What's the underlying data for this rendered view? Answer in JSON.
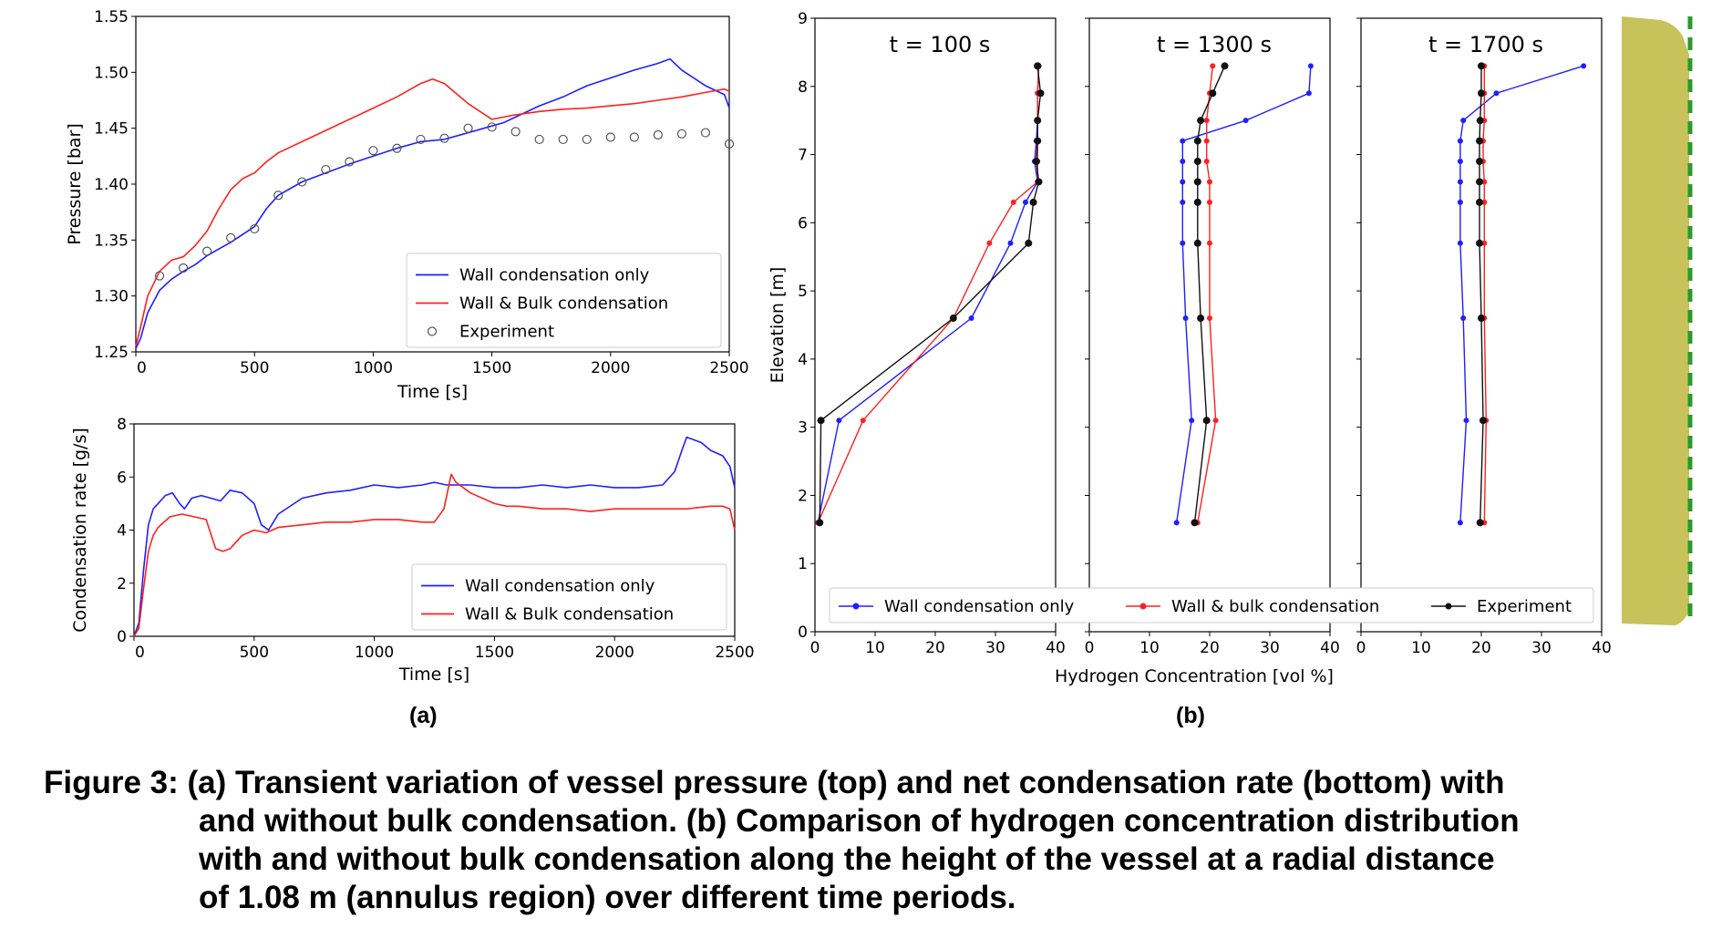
{
  "panels": {
    "a": "(a)",
    "b": "(b)"
  },
  "caption": {
    "line1": "Figure 3: (a) Transient variation of vessel pressure (top) and net condensation rate (bottom) with",
    "line2": "and without bulk condensation. (b) Comparison of hydrogen concentration distribution",
    "line3": "with and without bulk condensation along the height of the vessel at a radial distance",
    "line4": "of 1.08 m (annulus region) over different time periods."
  },
  "colors": {
    "wall": "#1f1fff",
    "bulk": "#ff2020",
    "experiment": "#111111",
    "vessel": "#c8c25a",
    "centerline": "#2a9a2a"
  },
  "chart_data": [
    {
      "type": "line",
      "id": "pressure",
      "xlabel": "Time [s]",
      "ylabel": "Pressure [bar]",
      "xlim": [
        0,
        2500
      ],
      "ylim": [
        1.25,
        1.55
      ],
      "xticks": [
        0,
        500,
        1000,
        1500,
        2000,
        2500
      ],
      "yticks": [
        1.25,
        1.3,
        1.35,
        1.4,
        1.45,
        1.5,
        1.55
      ],
      "legend_position": "lower-right",
      "series": [
        {
          "name": "Wall condensation only",
          "style": "line",
          "color": "#1f1fff",
          "x": [
            0,
            20,
            50,
            100,
            150,
            200,
            250,
            300,
            350,
            400,
            450,
            500,
            550,
            600,
            700,
            800,
            900,
            1000,
            1100,
            1200,
            1300,
            1400,
            1500,
            1550,
            1600,
            1700,
            1800,
            1900,
            2000,
            2100,
            2200,
            2250,
            2300,
            2400,
            2480,
            2500
          ],
          "y": [
            1.253,
            1.262,
            1.285,
            1.305,
            1.315,
            1.322,
            1.328,
            1.336,
            1.342,
            1.348,
            1.355,
            1.362,
            1.378,
            1.39,
            1.402,
            1.41,
            1.418,
            1.425,
            1.432,
            1.438,
            1.44,
            1.446,
            1.452,
            1.455,
            1.46,
            1.47,
            1.478,
            1.488,
            1.495,
            1.502,
            1.508,
            1.512,
            1.502,
            1.488,
            1.48,
            1.468
          ]
        },
        {
          "name": "Wall & Bulk condensation",
          "style": "line",
          "color": "#ff2020",
          "x": [
            0,
            20,
            50,
            100,
            150,
            200,
            250,
            300,
            350,
            400,
            450,
            500,
            550,
            600,
            700,
            800,
            900,
            1000,
            1100,
            1200,
            1250,
            1300,
            1400,
            1500,
            1550,
            1600,
            1700,
            1800,
            1900,
            2000,
            2100,
            2200,
            2300,
            2400,
            2480,
            2500
          ],
          "y": [
            1.255,
            1.272,
            1.3,
            1.322,
            1.332,
            1.335,
            1.345,
            1.358,
            1.378,
            1.395,
            1.405,
            1.41,
            1.42,
            1.428,
            1.438,
            1.448,
            1.458,
            1.468,
            1.478,
            1.49,
            1.494,
            1.49,
            1.472,
            1.458,
            1.46,
            1.462,
            1.465,
            1.467,
            1.468,
            1.47,
            1.472,
            1.475,
            1.478,
            1.482,
            1.485,
            1.483
          ]
        },
        {
          "name": "Experiment",
          "style": "marker",
          "color": "#555555",
          "x": [
            100,
            200,
            300,
            400,
            500,
            600,
            700,
            800,
            900,
            1000,
            1100,
            1200,
            1300,
            1400,
            1500,
            1600,
            1700,
            1800,
            1900,
            2000,
            2100,
            2200,
            2300,
            2400,
            2500
          ],
          "y": [
            1.318,
            1.325,
            1.34,
            1.352,
            1.36,
            1.39,
            1.402,
            1.413,
            1.42,
            1.43,
            1.432,
            1.44,
            1.441,
            1.45,
            1.451,
            1.447,
            1.44,
            1.44,
            1.44,
            1.442,
            1.442,
            1.444,
            1.445,
            1.446,
            1.436
          ]
        }
      ]
    },
    {
      "type": "line",
      "id": "condensation",
      "xlabel": "Time [s]",
      "ylabel": "Condensation rate [g/s]",
      "xlim": [
        0,
        2500
      ],
      "ylim": [
        0,
        8
      ],
      "xticks": [
        0,
        500,
        1000,
        1500,
        2000,
        2500
      ],
      "yticks": [
        0,
        2,
        4,
        6,
        8
      ],
      "legend_position": "lower-right",
      "series": [
        {
          "name": "Wall condensation only",
          "style": "line",
          "color": "#1f1fff",
          "x": [
            0,
            20,
            40,
            60,
            80,
            100,
            130,
            160,
            190,
            210,
            240,
            280,
            320,
            360,
            400,
            450,
            500,
            530,
            560,
            580,
            600,
            700,
            800,
            900,
            1000,
            1100,
            1200,
            1250,
            1300,
            1400,
            1500,
            1600,
            1700,
            1800,
            1900,
            2000,
            2100,
            2200,
            2250,
            2280,
            2300,
            2330,
            2360,
            2400,
            2450,
            2480,
            2500
          ],
          "y": [
            0,
            0.5,
            2.5,
            4.2,
            4.8,
            5.0,
            5.3,
            5.4,
            5.0,
            4.8,
            5.2,
            5.3,
            5.2,
            5.1,
            5.5,
            5.4,
            5.0,
            4.2,
            4.0,
            4.3,
            4.6,
            5.2,
            5.4,
            5.5,
            5.7,
            5.6,
            5.7,
            5.8,
            5.7,
            5.7,
            5.6,
            5.6,
            5.7,
            5.6,
            5.7,
            5.6,
            5.6,
            5.7,
            6.2,
            7.0,
            7.5,
            7.4,
            7.3,
            7.0,
            6.8,
            6.4,
            5.6
          ]
        },
        {
          "name": "Wall & Bulk condensation",
          "style": "line",
          "color": "#ff2020",
          "x": [
            0,
            20,
            40,
            60,
            80,
            100,
            150,
            200,
            250,
            300,
            340,
            370,
            400,
            450,
            500,
            550,
            600,
            700,
            800,
            900,
            1000,
            1100,
            1200,
            1250,
            1290,
            1320,
            1340,
            1400,
            1500,
            1550,
            1600,
            1700,
            1800,
            1900,
            2000,
            2100,
            2200,
            2300,
            2400,
            2450,
            2480,
            2500
          ],
          "y": [
            0,
            0.3,
            1.8,
            3.2,
            3.8,
            4.1,
            4.5,
            4.6,
            4.5,
            4.4,
            3.3,
            3.2,
            3.3,
            3.8,
            4.0,
            3.9,
            4.1,
            4.2,
            4.3,
            4.3,
            4.4,
            4.4,
            4.3,
            4.3,
            4.8,
            6.1,
            5.8,
            5.4,
            5.0,
            4.9,
            4.9,
            4.8,
            4.8,
            4.7,
            4.8,
            4.8,
            4.8,
            4.8,
            4.9,
            4.9,
            4.8,
            4.0
          ]
        }
      ]
    },
    {
      "type": "line",
      "id": "hydrogen",
      "xlabel": "Hydrogen Concentration [vol %]",
      "ylabel": "Elevation [m]",
      "xlim": [
        0,
        40
      ],
      "ylim": [
        0,
        9
      ],
      "xticks": [
        0,
        10,
        20,
        30,
        40
      ],
      "yticks": [
        0,
        1,
        2,
        3,
        4,
        5,
        6,
        7,
        8,
        9
      ],
      "legend_position": "bottom",
      "legend": [
        "Wall condensation only",
        "Wall & bulk condensation",
        "Experiment"
      ],
      "panels": [
        {
          "title": "t =  100 s",
          "series": [
            {
              "name": "Wall condensation only",
              "color": "#1f1fff",
              "x": [
                0.5,
                4,
                26,
                32.5,
                35,
                37,
                36.5,
                36.8,
                37,
                37,
                37.2,
                37
              ],
              "y": [
                1.6,
                3.1,
                4.6,
                5.7,
                6.3,
                6.6,
                6.9,
                7.2,
                7.5,
                7.9,
                8.3,
                8.3
              ]
            },
            {
              "name": "Wall & bulk condensation",
              "color": "#ff2020",
              "x": [
                0.5,
                8,
                23,
                29,
                33,
                37,
                37,
                37,
                37,
                37,
                37.2,
                37.2
              ],
              "y": [
                1.6,
                3.1,
                4.6,
                5.7,
                6.3,
                6.6,
                6.9,
                7.2,
                7.5,
                7.9,
                8.3,
                8.3
              ]
            },
            {
              "name": "Experiment",
              "color": "#111111",
              "x": [
                0.8,
                1,
                23,
                35.5,
                36.3,
                37.2,
                36.8,
                37,
                37,
                37.5,
                37,
                37
              ],
              "y": [
                1.6,
                3.1,
                4.6,
                5.7,
                6.3,
                6.6,
                6.9,
                7.2,
                7.5,
                7.9,
                8.3,
                8.3
              ]
            }
          ]
        },
        {
          "title": "t =  1300 s",
          "series": [
            {
              "name": "Wall condensation only",
              "color": "#1f1fff",
              "x": [
                14.5,
                17,
                16,
                15.5,
                15.5,
                15.5,
                15.5,
                15.5,
                26,
                36.5,
                36.8
              ],
              "y": [
                1.6,
                3.1,
                4.6,
                5.7,
                6.3,
                6.6,
                6.9,
                7.2,
                7.5,
                7.9,
                8.3
              ]
            },
            {
              "name": "Wall & bulk condensation",
              "color": "#ff2020",
              "x": [
                18,
                21,
                20,
                20,
                20,
                20,
                19.5,
                19.5,
                19.5,
                20,
                20.5
              ],
              "y": [
                1.6,
                3.1,
                4.6,
                5.7,
                6.3,
                6.6,
                6.9,
                7.2,
                7.5,
                7.9,
                8.3
              ]
            },
            {
              "name": "Experiment",
              "color": "#111111",
              "x": [
                17.5,
                19.5,
                18.5,
                18,
                18,
                18,
                18,
                18,
                18.5,
                20.5,
                22.5
              ],
              "y": [
                1.6,
                3.1,
                4.6,
                5.7,
                6.3,
                6.6,
                6.9,
                7.2,
                7.5,
                7.9,
                8.3
              ]
            }
          ]
        },
        {
          "title": "t =  1700 s",
          "series": [
            {
              "name": "Wall condensation only",
              "color": "#1f1fff",
              "x": [
                16.5,
                17.5,
                17,
                16.5,
                16.5,
                16.5,
                16.5,
                16.5,
                17,
                22.5,
                37
              ],
              "y": [
                1.6,
                3.1,
                4.6,
                5.7,
                6.3,
                6.6,
                6.9,
                7.2,
                7.5,
                7.9,
                8.3
              ]
            },
            {
              "name": "Wall & bulk condensation",
              "color": "#ff2020",
              "x": [
                20.5,
                20.8,
                20.5,
                20.5,
                20.5,
                20.5,
                20.3,
                20.3,
                20.5,
                20.5,
                20.5
              ],
              "y": [
                1.6,
                3.1,
                4.6,
                5.7,
                6.3,
                6.6,
                6.9,
                7.2,
                7.5,
                7.9,
                8.3
              ]
            },
            {
              "name": "Experiment",
              "color": "#111111",
              "x": [
                19.8,
                20.3,
                20,
                19.7,
                19.7,
                19.7,
                19.7,
                19.7,
                19.8,
                20,
                20
              ],
              "y": [
                1.6,
                3.1,
                4.6,
                5.7,
                6.3,
                6.6,
                6.9,
                7.2,
                7.5,
                7.9,
                8.3
              ]
            }
          ]
        }
      ]
    }
  ]
}
